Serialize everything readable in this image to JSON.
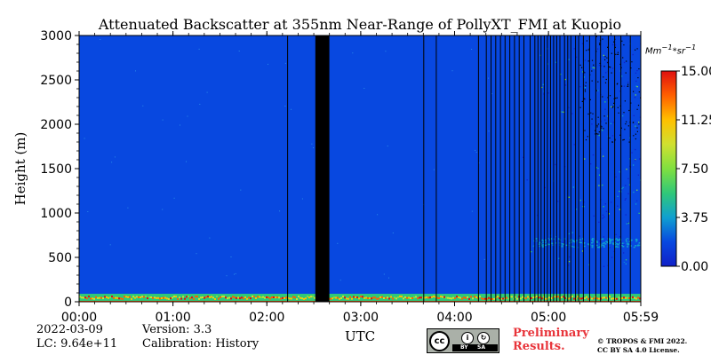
{
  "chart_data": {
    "type": "heatmap",
    "title": "Attenuated Backscatter at 355nm Near-Range of PollyXT_FMI at Kuopio",
    "xlabel": "UTC",
    "ylabel": "Height (m)",
    "xlim": [
      "00:00",
      "05:59"
    ],
    "ylim": [
      0,
      3000
    ],
    "x_ticks": [
      "00:00",
      "01:00",
      "02:00",
      "03:00",
      "04:00",
      "05:00",
      "05:59"
    ],
    "y_ticks": [
      0,
      500,
      1000,
      1500,
      2000,
      2500,
      3000
    ],
    "colorbar": {
      "unit_html": "Mm<sup>−1</sup>*sr<sup>−1</sup>",
      "range": [
        0.0,
        15.0
      ],
      "tick_labels": [
        "0.00",
        "3.75",
        "7.50",
        "11.25",
        "15.00"
      ],
      "colormap": [
        "#1020c8",
        "#0848e0",
        "#10a0d0",
        "#30c878",
        "#80e040",
        "#d0e030",
        "#ffc000",
        "#ff6000",
        "#e01010"
      ]
    },
    "no_data_color": "#000000",
    "background_color": "#0848e0",
    "no_data_intervals": [
      {
        "start": "02:31",
        "end": "02:40",
        "label": "data gap"
      }
    ],
    "thin_gaps_utc": [
      "02:13",
      "03:40",
      "03:48",
      "04:15",
      "04:20",
      "04:23",
      "04:26",
      "04:29",
      "04:32",
      "04:35",
      "04:38",
      "04:41",
      "04:44",
      "04:48",
      "04:51",
      "04:53",
      "04:55",
      "04:57",
      "04:59",
      "05:01",
      "05:03",
      "05:05",
      "05:07",
      "05:10",
      "05:12",
      "05:14",
      "05:17",
      "05:19",
      "05:22",
      "05:26",
      "05:30",
      "05:33",
      "05:38",
      "05:42",
      "05:46",
      "05:52"
    ],
    "layers": [
      {
        "name": "surface layer",
        "height_range_m": [
          0,
          90
        ],
        "value_range": [
          4,
          15
        ]
      },
      {
        "name": "noisy upper region",
        "time_range": [
          "04:40",
          "05:59"
        ],
        "height_range_m": [
          400,
          3000
        ],
        "value_range": [
          0,
          8
        ]
      },
      {
        "name": "aerosol band",
        "time_range": [
          "04:50",
          "05:59"
        ],
        "height_range_m": [
          620,
          720
        ],
        "value_range": [
          2,
          4
        ]
      }
    ]
  },
  "info": {
    "date": "2022-03-09",
    "lc": "LC: 9.64e+11",
    "version": "Version: 3.3",
    "calibration": "Calibration: History",
    "preliminary_line1": "Preliminary",
    "preliminary_line2": "Results.",
    "copyright_line1": "© TROPOS & FMI 2022.",
    "copyright_line2": "CC BY SA 4.0 License.",
    "license_badge": {
      "cc": "cc",
      "by": "BY",
      "sa": "SA"
    }
  }
}
